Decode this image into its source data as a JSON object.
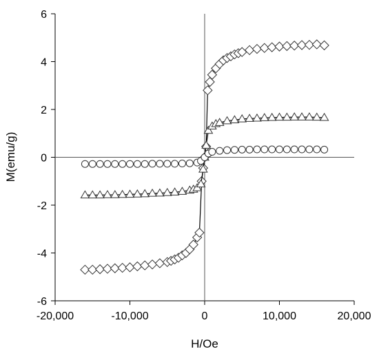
{
  "chart_data": {
    "type": "scatter",
    "xlabel": "H/Oe",
    "ylabel": "M(emu/g)",
    "xlim": [
      -20000,
      20000
    ],
    "ylim": [
      -6,
      6
    ],
    "x_ticks": [
      -20000,
      -10000,
      0,
      10000,
      20000
    ],
    "x_tick_labels": [
      "-20,000",
      "-10,000",
      "0",
      "10,000",
      "20,000"
    ],
    "y_ticks": [
      -6,
      -4,
      -2,
      0,
      2,
      4,
      6
    ],
    "y_tick_labels": [
      "-6",
      "-4",
      "-2",
      "0",
      "2",
      "4",
      "6"
    ],
    "grid": false,
    "series": [
      {
        "marker": "diamond",
        "x": [
          -16000,
          -15000,
          -14000,
          -13000,
          -12000,
          -11000,
          -10000,
          -9000,
          -8000,
          -7000,
          -6000,
          -5000,
          -4500,
          -4000,
          -3500,
          -3000,
          -2500,
          -2000,
          -1500,
          -1000,
          -700,
          -400,
          -200,
          0,
          200,
          400,
          700,
          1000,
          1500,
          2000,
          2500,
          3000,
          3500,
          4000,
          4500,
          5000,
          6000,
          7000,
          8000,
          9000,
          10000,
          11000,
          12000,
          13000,
          14000,
          15000,
          16000
        ],
        "y": [
          -4.7,
          -4.7,
          -4.68,
          -4.66,
          -4.64,
          -4.62,
          -4.6,
          -4.56,
          -4.52,
          -4.48,
          -4.43,
          -4.38,
          -4.33,
          -4.27,
          -4.2,
          -4.1,
          -4.0,
          -3.85,
          -3.65,
          -3.35,
          -3.15,
          -1.0,
          -0.45,
          0.0,
          0.45,
          2.8,
          3.15,
          3.45,
          3.72,
          3.9,
          4.05,
          4.15,
          4.22,
          4.3,
          4.35,
          4.4,
          4.48,
          4.53,
          4.57,
          4.6,
          4.63,
          4.65,
          4.67,
          4.69,
          4.7,
          4.72,
          4.68
        ]
      },
      {
        "marker": "triangle",
        "x": [
          -16000,
          -15000,
          -14000,
          -13000,
          -12000,
          -11000,
          -10000,
          -9000,
          -8000,
          -7000,
          -6000,
          -5000,
          -4000,
          -3000,
          -2000,
          -1500,
          -1000,
          -500,
          -200,
          0,
          200,
          500,
          1000,
          1500,
          2000,
          3000,
          4000,
          5000,
          6000,
          7000,
          8000,
          9000,
          10000,
          11000,
          12000,
          13000,
          14000,
          15000,
          16000
        ],
        "y": [
          -1.58,
          -1.58,
          -1.58,
          -1.57,
          -1.57,
          -1.56,
          -1.55,
          -1.54,
          -1.53,
          -1.51,
          -1.5,
          -1.48,
          -1.46,
          -1.43,
          -1.38,
          -1.34,
          -1.28,
          -1.12,
          -0.5,
          0.0,
          0.5,
          1.12,
          1.3,
          1.4,
          1.45,
          1.52,
          1.56,
          1.6,
          1.62,
          1.63,
          1.65,
          1.66,
          1.67,
          1.67,
          1.68,
          1.68,
          1.68,
          1.67,
          1.66
        ]
      },
      {
        "marker": "circle",
        "x": [
          -16000,
          -15000,
          -14000,
          -13000,
          -12000,
          -11000,
          -10000,
          -9000,
          -8000,
          -7000,
          -6000,
          -5000,
          -4000,
          -3000,
          -2000,
          -1000,
          -500,
          0,
          500,
          1000,
          2000,
          3000,
          4000,
          5000,
          6000,
          7000,
          8000,
          9000,
          10000,
          11000,
          12000,
          13000,
          14000,
          15000,
          16000
        ],
        "y": [
          -0.28,
          -0.28,
          -0.28,
          -0.28,
          -0.28,
          -0.28,
          -0.28,
          -0.28,
          -0.28,
          -0.27,
          -0.27,
          -0.27,
          -0.27,
          -0.26,
          -0.25,
          -0.22,
          -0.15,
          0.0,
          0.16,
          0.23,
          0.27,
          0.3,
          0.31,
          0.32,
          0.32,
          0.33,
          0.33,
          0.33,
          0.33,
          0.33,
          0.33,
          0.33,
          0.33,
          0.33,
          0.32
        ]
      }
    ]
  }
}
